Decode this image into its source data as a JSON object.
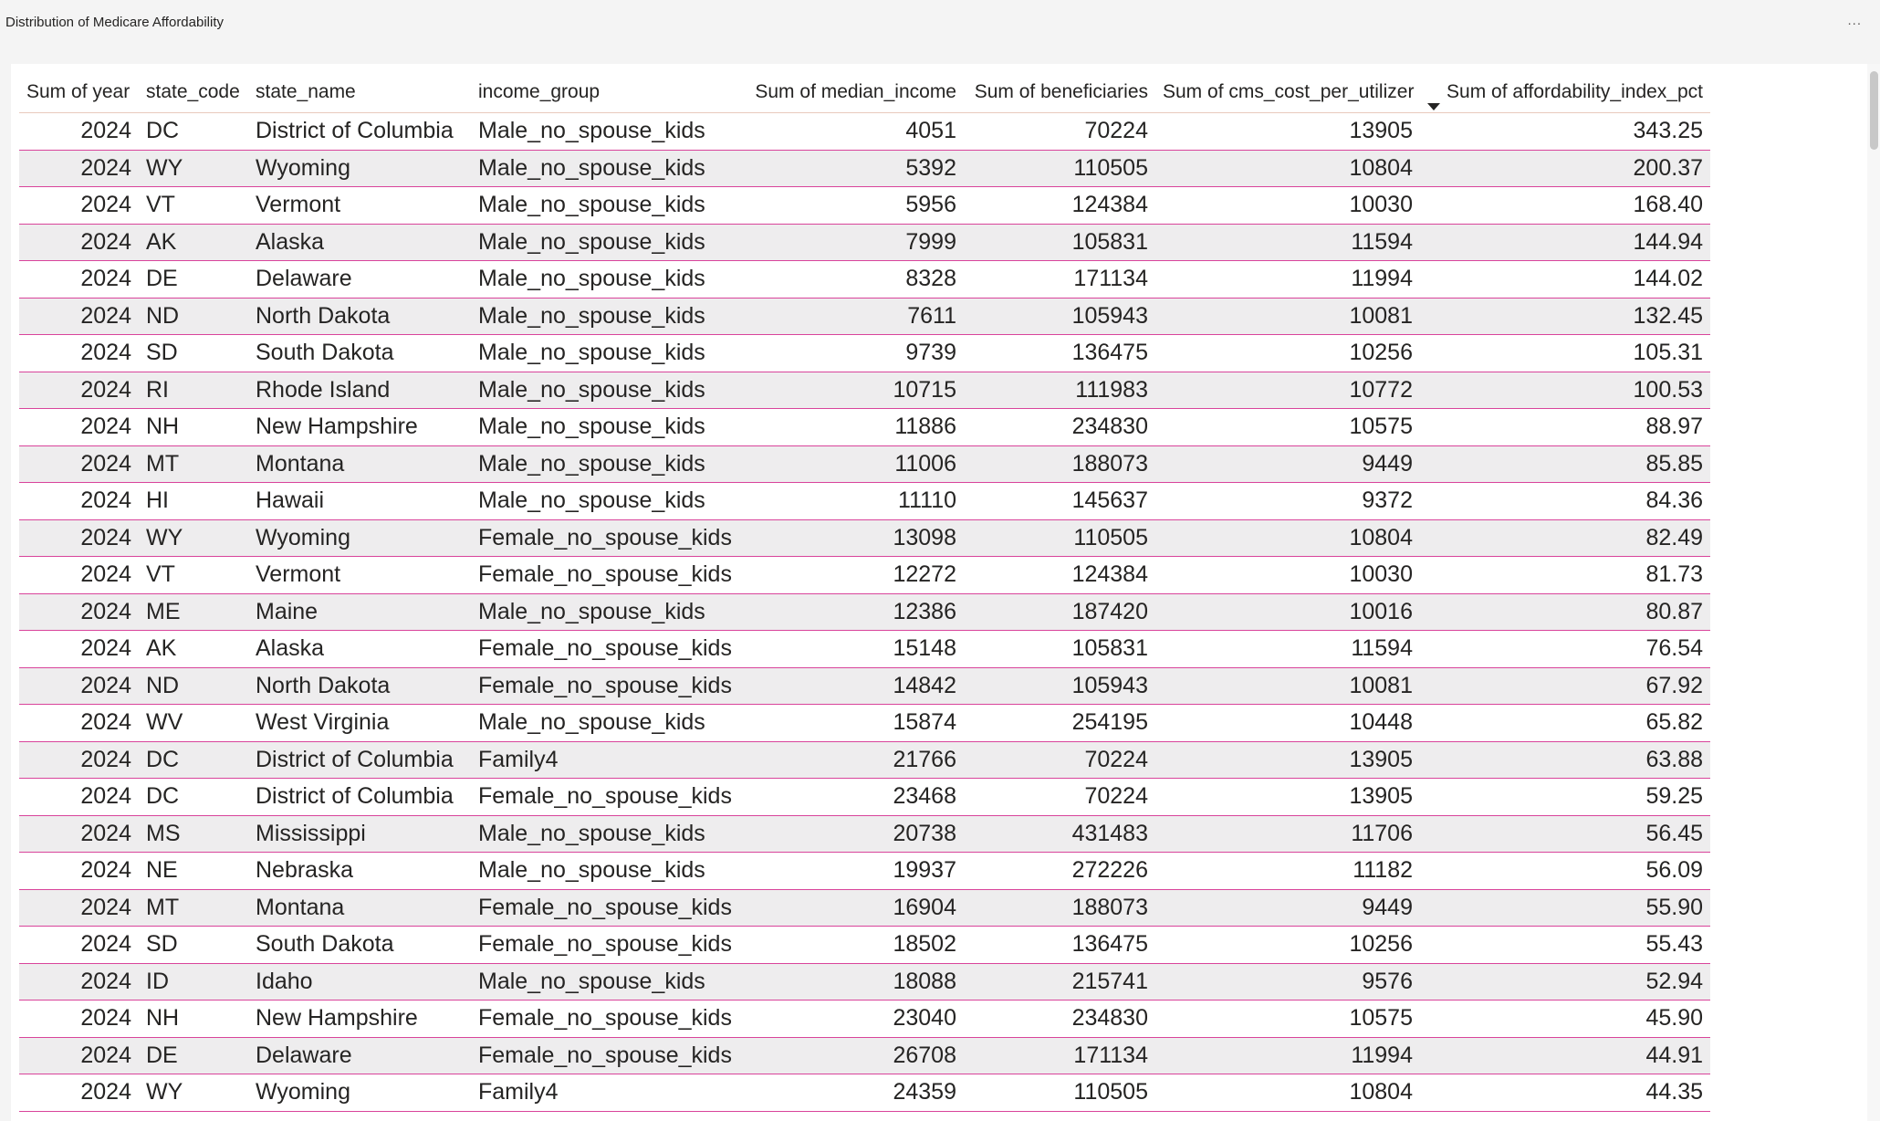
{
  "header": {
    "title": "Distribution of Medicare Affordability",
    "more_options": "..."
  },
  "table": {
    "columns": [
      "Sum of year",
      "state_code",
      "state_name",
      "income_group",
      "Sum of median_income",
      "Sum of beneficiaries",
      "Sum of cms_cost_per_utilizer",
      "Sum of affordability_index_pct"
    ],
    "sorted_column": "Sum of affordability_index_pct",
    "sort_direction": "descending",
    "rows": [
      [
        "2024",
        "DC",
        "District of Columbia",
        "Male_no_spouse_kids",
        "4051",
        "70224",
        "13905",
        "343.25"
      ],
      [
        "2024",
        "WY",
        "Wyoming",
        "Male_no_spouse_kids",
        "5392",
        "110505",
        "10804",
        "200.37"
      ],
      [
        "2024",
        "VT",
        "Vermont",
        "Male_no_spouse_kids",
        "5956",
        "124384",
        "10030",
        "168.40"
      ],
      [
        "2024",
        "AK",
        "Alaska",
        "Male_no_spouse_kids",
        "7999",
        "105831",
        "11594",
        "144.94"
      ],
      [
        "2024",
        "DE",
        "Delaware",
        "Male_no_spouse_kids",
        "8328",
        "171134",
        "11994",
        "144.02"
      ],
      [
        "2024",
        "ND",
        "North Dakota",
        "Male_no_spouse_kids",
        "7611",
        "105943",
        "10081",
        "132.45"
      ],
      [
        "2024",
        "SD",
        "South Dakota",
        "Male_no_spouse_kids",
        "9739",
        "136475",
        "10256",
        "105.31"
      ],
      [
        "2024",
        "RI",
        "Rhode Island",
        "Male_no_spouse_kids",
        "10715",
        "111983",
        "10772",
        "100.53"
      ],
      [
        "2024",
        "NH",
        "New Hampshire",
        "Male_no_spouse_kids",
        "11886",
        "234830",
        "10575",
        "88.97"
      ],
      [
        "2024",
        "MT",
        "Montana",
        "Male_no_spouse_kids",
        "11006",
        "188073",
        "9449",
        "85.85"
      ],
      [
        "2024",
        "HI",
        "Hawaii",
        "Male_no_spouse_kids",
        "11110",
        "145637",
        "9372",
        "84.36"
      ],
      [
        "2024",
        "WY",
        "Wyoming",
        "Female_no_spouse_kids",
        "13098",
        "110505",
        "10804",
        "82.49"
      ],
      [
        "2024",
        "VT",
        "Vermont",
        "Female_no_spouse_kids",
        "12272",
        "124384",
        "10030",
        "81.73"
      ],
      [
        "2024",
        "ME",
        "Maine",
        "Male_no_spouse_kids",
        "12386",
        "187420",
        "10016",
        "80.87"
      ],
      [
        "2024",
        "AK",
        "Alaska",
        "Female_no_spouse_kids",
        "15148",
        "105831",
        "11594",
        "76.54"
      ],
      [
        "2024",
        "ND",
        "North Dakota",
        "Female_no_spouse_kids",
        "14842",
        "105943",
        "10081",
        "67.92"
      ],
      [
        "2024",
        "WV",
        "West Virginia",
        "Male_no_spouse_kids",
        "15874",
        "254195",
        "10448",
        "65.82"
      ],
      [
        "2024",
        "DC",
        "District of Columbia",
        "Family4",
        "21766",
        "70224",
        "13905",
        "63.88"
      ],
      [
        "2024",
        "DC",
        "District of Columbia",
        "Female_no_spouse_kids",
        "23468",
        "70224",
        "13905",
        "59.25"
      ],
      [
        "2024",
        "MS",
        "Mississippi",
        "Male_no_spouse_kids",
        "20738",
        "431483",
        "11706",
        "56.45"
      ],
      [
        "2024",
        "NE",
        "Nebraska",
        "Male_no_spouse_kids",
        "19937",
        "272226",
        "11182",
        "56.09"
      ],
      [
        "2024",
        "MT",
        "Montana",
        "Female_no_spouse_kids",
        "16904",
        "188073",
        "9449",
        "55.90"
      ],
      [
        "2024",
        "SD",
        "South Dakota",
        "Female_no_spouse_kids",
        "18502",
        "136475",
        "10256",
        "55.43"
      ],
      [
        "2024",
        "ID",
        "Idaho",
        "Male_no_spouse_kids",
        "18088",
        "215741",
        "9576",
        "52.94"
      ],
      [
        "2024",
        "NH",
        "New Hampshire",
        "Female_no_spouse_kids",
        "23040",
        "234830",
        "10575",
        "45.90"
      ],
      [
        "2024",
        "DE",
        "Delaware",
        "Female_no_spouse_kids",
        "26708",
        "171134",
        "11994",
        "44.91"
      ],
      [
        "2024",
        "WY",
        "Wyoming",
        "Family4",
        "24359",
        "110505",
        "10804",
        "44.35"
      ]
    ]
  },
  "colors": {
    "row_divider": "#d9449b",
    "row_alt_background": "#eeedee",
    "header_divider": "#e8c9bd"
  }
}
